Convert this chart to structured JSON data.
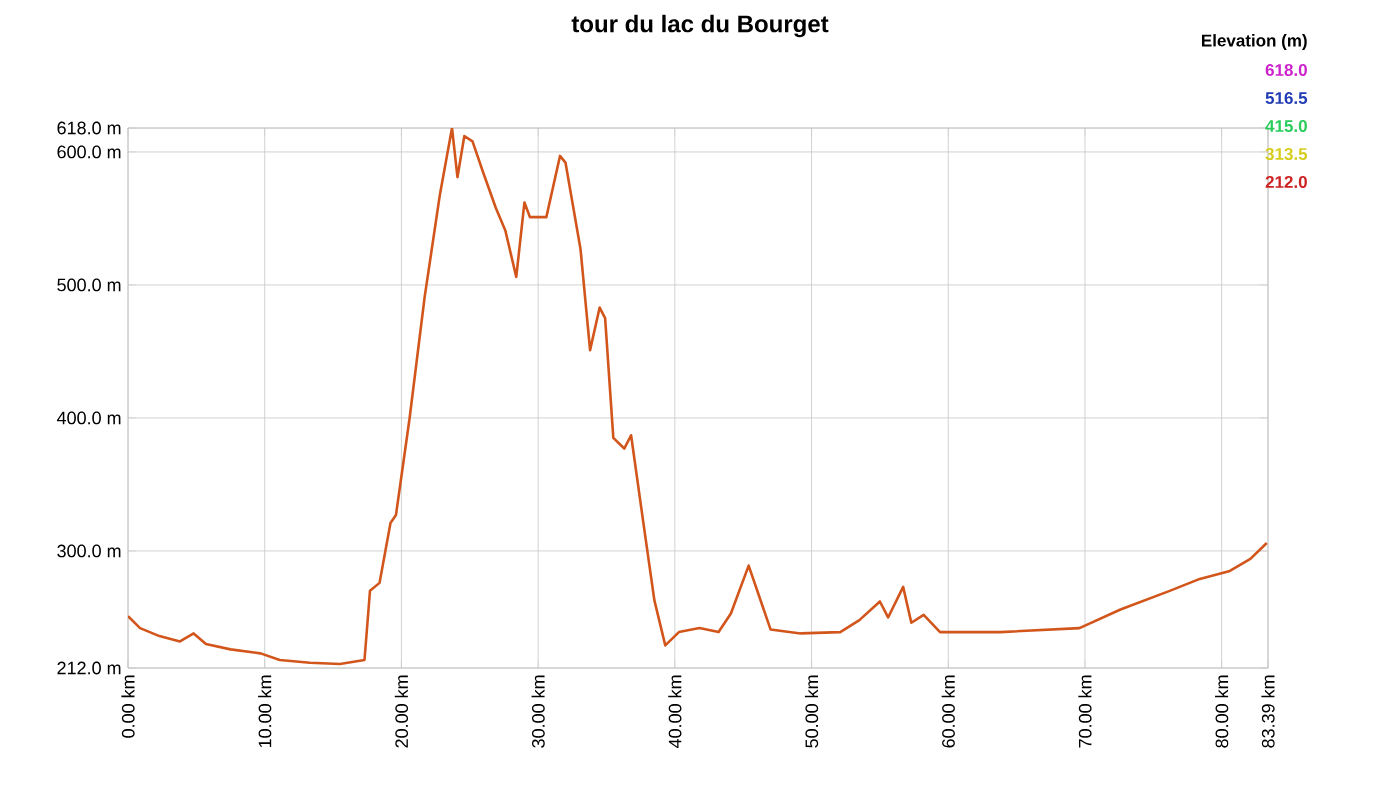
{
  "chart_data": {
    "type": "line",
    "title": "tour du lac du Bourget",
    "x": [
      0,
      0.88,
      2.3,
      3.8,
      4.8,
      5.7,
      7.5,
      9.7,
      11.1,
      13.3,
      15.5,
      17.3,
      17.7,
      18.4,
      19.2,
      19.6,
      20.6,
      21.7,
      22.8,
      23.7,
      24.1,
      24.6,
      25.2,
      26.0,
      26.9,
      27.6,
      28.4,
      29.0,
      29.4,
      30.6,
      31.6,
      32.0,
      33.1,
      33.8,
      34.5,
      34.9,
      35.5,
      36.3,
      36.8,
      37.7,
      38.5,
      39.3,
      40.3,
      41.8,
      43.2,
      44.1,
      45.4,
      47.0,
      49.2,
      52.1,
      53.5,
      55.0,
      55.6,
      56.7,
      57.3,
      58.2,
      59.4,
      63.8,
      69.6,
      72.6,
      76.2,
      78.4,
      80.6,
      82.1,
      83.3
    ],
    "series": [
      {
        "color": "#d2561c",
        "values": [
          251,
          242,
          236,
          232,
          238,
          230,
          226,
          223,
          218,
          216,
          215,
          218,
          270,
          276,
          321,
          327,
          400,
          491,
          567,
          618,
          581,
          612,
          608,
          584,
          558,
          541,
          506,
          562,
          551,
          551,
          597,
          592,
          527,
          451,
          483,
          475,
          385,
          377,
          387,
          321,
          263,
          229,
          239,
          242,
          239,
          253,
          289,
          241,
          238,
          239,
          248,
          262,
          250,
          273,
          246,
          252,
          239,
          239,
          242,
          256,
          270,
          279,
          285,
          294,
          306
        ]
      }
    ],
    "xlim": [
      0,
      83.39
    ],
    "xticks": [
      {
        "value": 0,
        "label": "0.00 km"
      },
      {
        "value": 10,
        "label": "10.00 km"
      },
      {
        "value": 20,
        "label": "20.00 km"
      },
      {
        "value": 30,
        "label": "30.00 km"
      },
      {
        "value": 40,
        "label": "40.00 km"
      },
      {
        "value": 50,
        "label": "50.00 km"
      },
      {
        "value": 60,
        "label": "60.00 km"
      },
      {
        "value": 70,
        "label": "70.00 km"
      },
      {
        "value": 80,
        "label": "80.00 km"
      },
      {
        "value": 83.39,
        "label": "83.39 km"
      }
    ],
    "ylim": [
      212,
      618
    ],
    "yticks": [
      {
        "value": 212,
        "label": "212.0 m"
      },
      {
        "value": 300,
        "label": "300.0 m"
      },
      {
        "value": 400,
        "label": "400.0 m"
      },
      {
        "value": 500,
        "label": "500.0 m"
      },
      {
        "value": 600,
        "label": "600.0 m"
      },
      {
        "value": 618,
        "label": "618.0 m"
      }
    ],
    "legend_title": "Elevation (m)",
    "annotations": [
      "618.0",
      "516.5",
      "415.0",
      "313.5",
      "212.0"
    ],
    "grid": true
  }
}
